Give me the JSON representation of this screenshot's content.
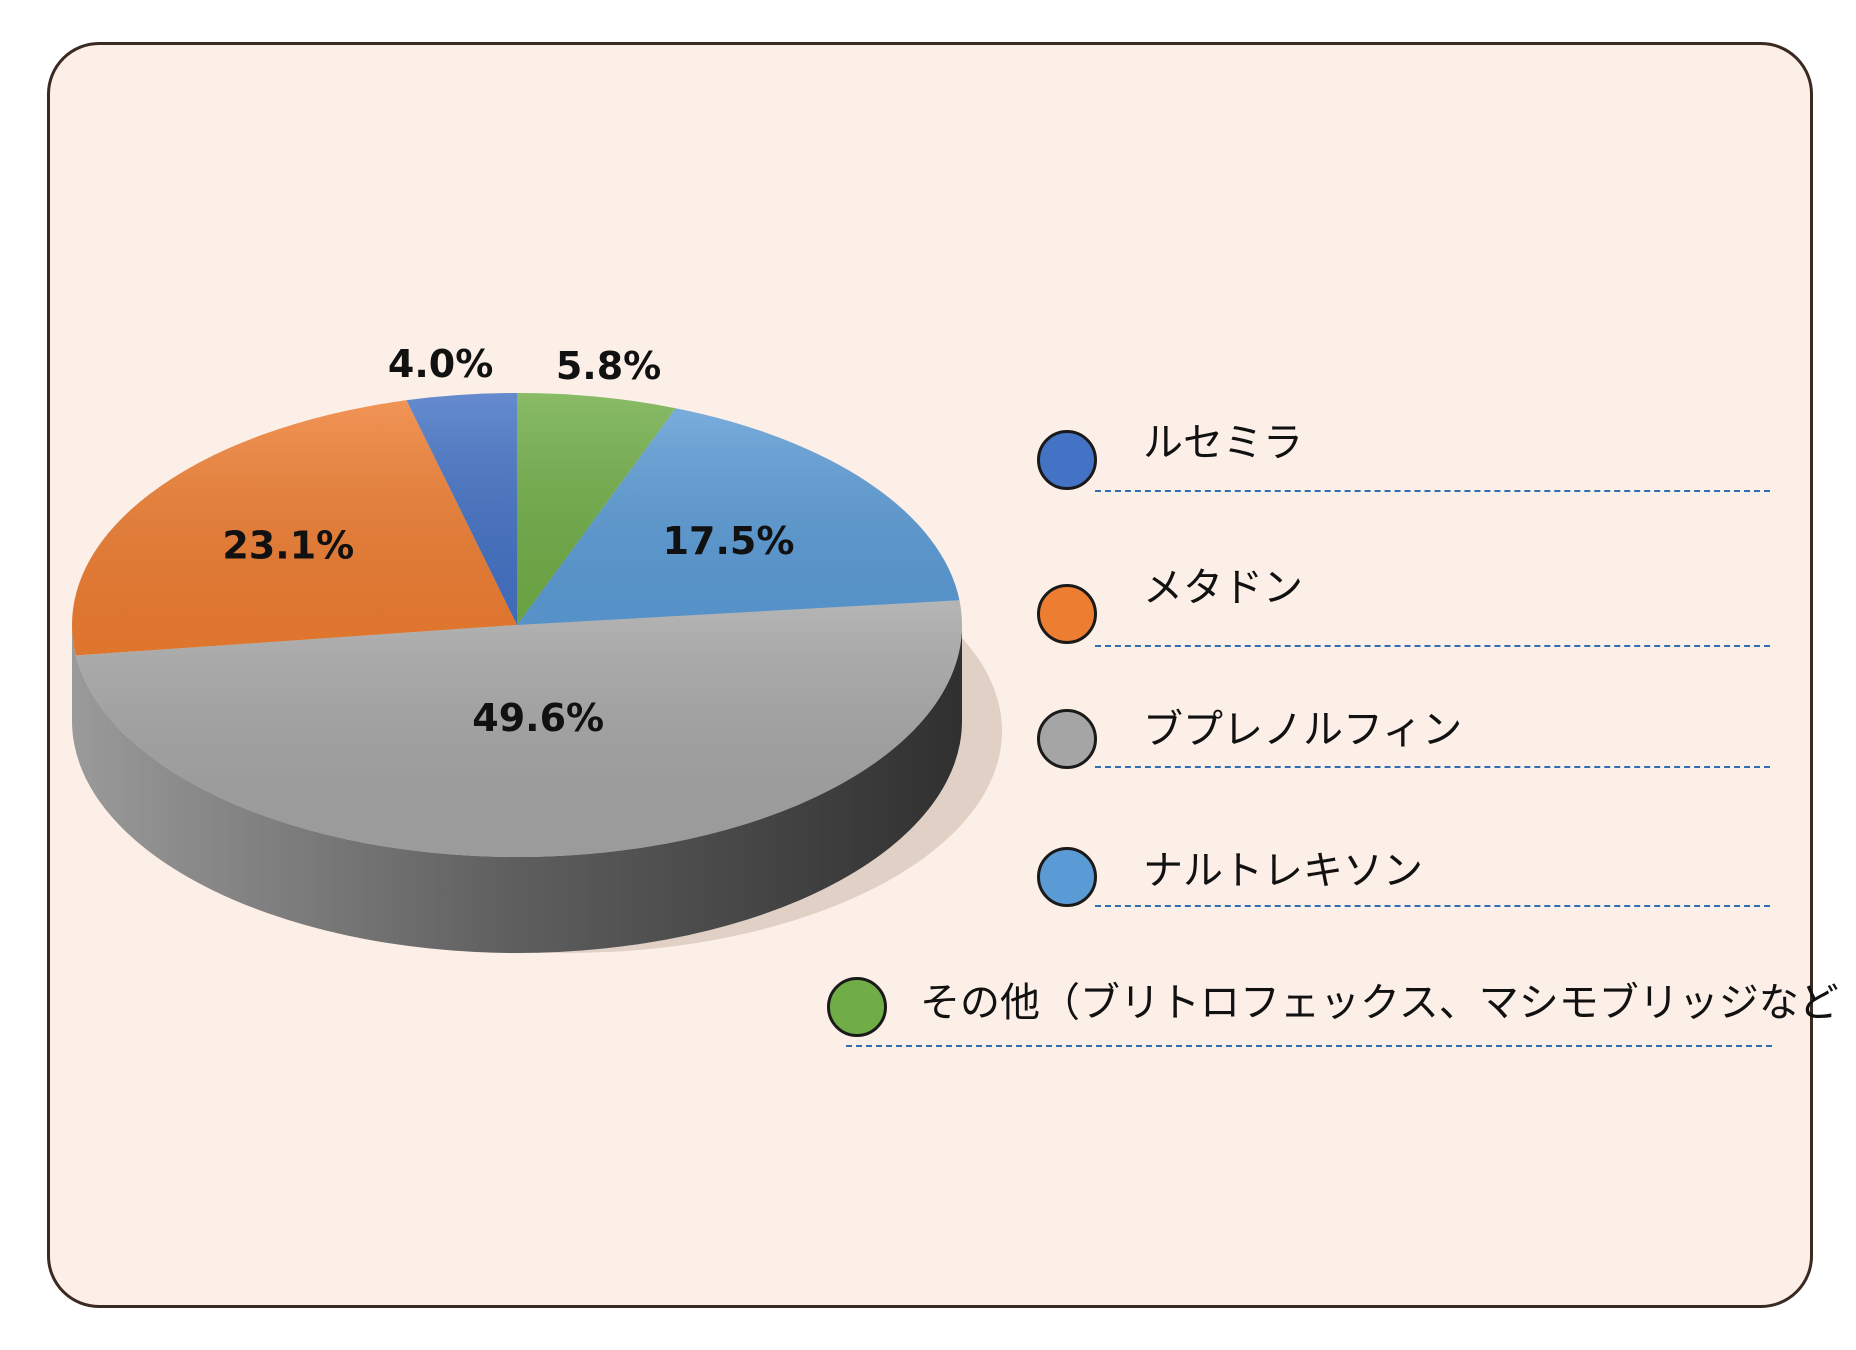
{
  "chart_data": {
    "type": "pie",
    "title": "",
    "slices": [
      {
        "label": "ルセミラ",
        "value": 4.0,
        "display": "4.0%",
        "color": "#4472c4"
      },
      {
        "label": "メタドン",
        "value": 23.1,
        "display": "23.1%",
        "color": "#ed7d31"
      },
      {
        "label": "ブプレノルフィン",
        "value": 49.6,
        "display": "49.6%",
        "color": "#a5a5a5"
      },
      {
        "label": "ナルトレキソン",
        "value": 17.5,
        "display": "17.5%",
        "color": "#5b9bd5"
      },
      {
        "label": "その他（ブリトロフェックス、マシモブリッジなど",
        "value": 5.8,
        "display": "5.8%",
        "color": "#70ad47"
      }
    ],
    "legend_position": "right",
    "style": "3d-pie"
  },
  "legend": {
    "items": [
      {
        "label": "ルセミラ",
        "color": "#4472c4"
      },
      {
        "label": "メタドン",
        "color": "#ed7d31"
      },
      {
        "label": "ブプレノルフィン",
        "color": "#a5a5a5"
      },
      {
        "label": "ナルトレキソン",
        "color": "#5b9bd5"
      },
      {
        "label": "その他（ブリトロフェックス、マシモブリッジなど",
        "color": "#70ad47"
      }
    ]
  },
  "colors": {
    "panel_background": "#fcefe7",
    "panel_border": "#3a2a22",
    "legend_dash": "#2f6db5"
  }
}
